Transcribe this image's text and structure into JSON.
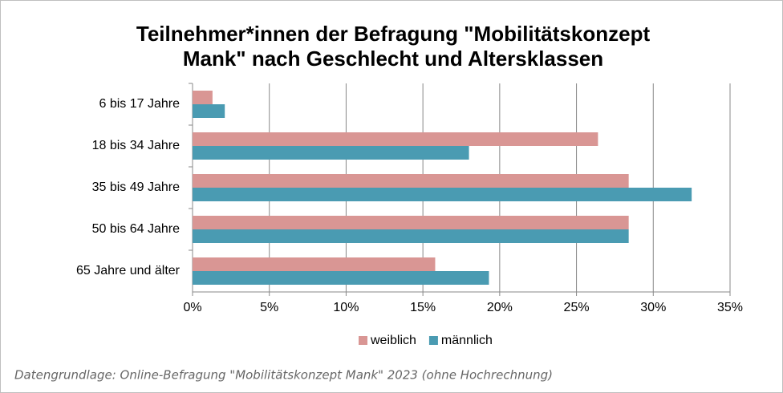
{
  "chart_data": {
    "type": "hbar",
    "title": [
      "Teilnehmer*innen der Befragung \"Mobilitätskonzept",
      "Mank\" nach Geschlecht und Altersklassen"
    ],
    "categories": [
      "6 bis 17 Jahre",
      "18 bis 34 Jahre",
      "35 bis 49 Jahre",
      "50 bis 64 Jahre",
      "65 Jahre und älter"
    ],
    "series": [
      {
        "name": "weiblich",
        "color": "#d99694",
        "values": [
          1.3,
          26.4,
          28.4,
          28.4,
          15.8
        ]
      },
      {
        "name": "männlich",
        "color": "#4a9bb2",
        "values": [
          2.1,
          18.0,
          32.5,
          28.4,
          19.3
        ]
      }
    ],
    "xlim": [
      0,
      35
    ],
    "xticks": [
      {
        "value": 0,
        "label": "0%"
      },
      {
        "value": 5,
        "label": "5%"
      },
      {
        "value": 10,
        "label": "10%"
      },
      {
        "value": 15,
        "label": "15%"
      },
      {
        "value": 20,
        "label": "20%"
      },
      {
        "value": 25,
        "label": "25%"
      },
      {
        "value": 30,
        "label": "30%"
      },
      {
        "value": 35,
        "label": "35%"
      }
    ],
    "grid": true,
    "legend": "bottom",
    "note": "Datengrundlage: Online-Befragung \"Mobilitätskonzept Mank\" 2023 (ohne Hochrechnung)"
  }
}
